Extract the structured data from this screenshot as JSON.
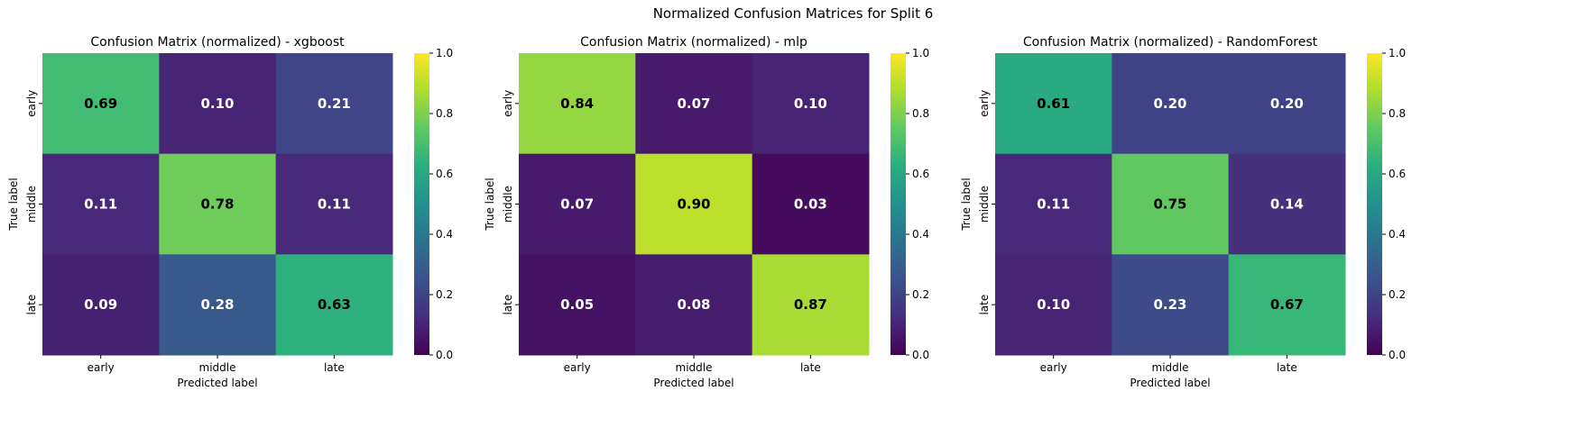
{
  "figure": {
    "suptitle": "Normalized Confusion Matrices for Split 6"
  },
  "chart_data": [
    {
      "type": "heatmap",
      "title": "Confusion Matrix (normalized) - xgboost",
      "xlabel": "Predicted label",
      "ylabel": "True label",
      "x_categories": [
        "early",
        "middle",
        "late"
      ],
      "y_categories": [
        "early",
        "middle",
        "late"
      ],
      "values": [
        [
          0.69,
          0.1,
          0.21
        ],
        [
          0.11,
          0.78,
          0.11
        ],
        [
          0.09,
          0.28,
          0.63
        ]
      ],
      "colormap": "viridis",
      "vmin": 0.0,
      "vmax": 1.0,
      "colorbar_ticks": [
        "0.0",
        "0.2",
        "0.4",
        "0.6",
        "0.8",
        "1.0"
      ]
    },
    {
      "type": "heatmap",
      "title": "Confusion Matrix (normalized) - mlp",
      "xlabel": "Predicted label",
      "ylabel": "True label",
      "x_categories": [
        "early",
        "middle",
        "late"
      ],
      "y_categories": [
        "early",
        "middle",
        "late"
      ],
      "values": [
        [
          0.84,
          0.07,
          0.1
        ],
        [
          0.07,
          0.9,
          0.03
        ],
        [
          0.05,
          0.08,
          0.87
        ]
      ],
      "colormap": "viridis",
      "vmin": 0.0,
      "vmax": 1.0,
      "colorbar_ticks": [
        "0.0",
        "0.2",
        "0.4",
        "0.6",
        "0.8",
        "1.0"
      ]
    },
    {
      "type": "heatmap",
      "title": "Confusion Matrix (normalized) - RandomForest",
      "xlabel": "Predicted label",
      "ylabel": "True label",
      "x_categories": [
        "early",
        "middle",
        "late"
      ],
      "y_categories": [
        "early",
        "middle",
        "late"
      ],
      "values": [
        [
          0.61,
          0.2,
          0.2
        ],
        [
          0.11,
          0.75,
          0.14
        ],
        [
          0.1,
          0.23,
          0.67
        ]
      ],
      "colormap": "viridis",
      "vmin": 0.0,
      "vmax": 1.0,
      "colorbar_ticks": [
        "0.0",
        "0.2",
        "0.4",
        "0.6",
        "0.8",
        "1.0"
      ]
    }
  ]
}
